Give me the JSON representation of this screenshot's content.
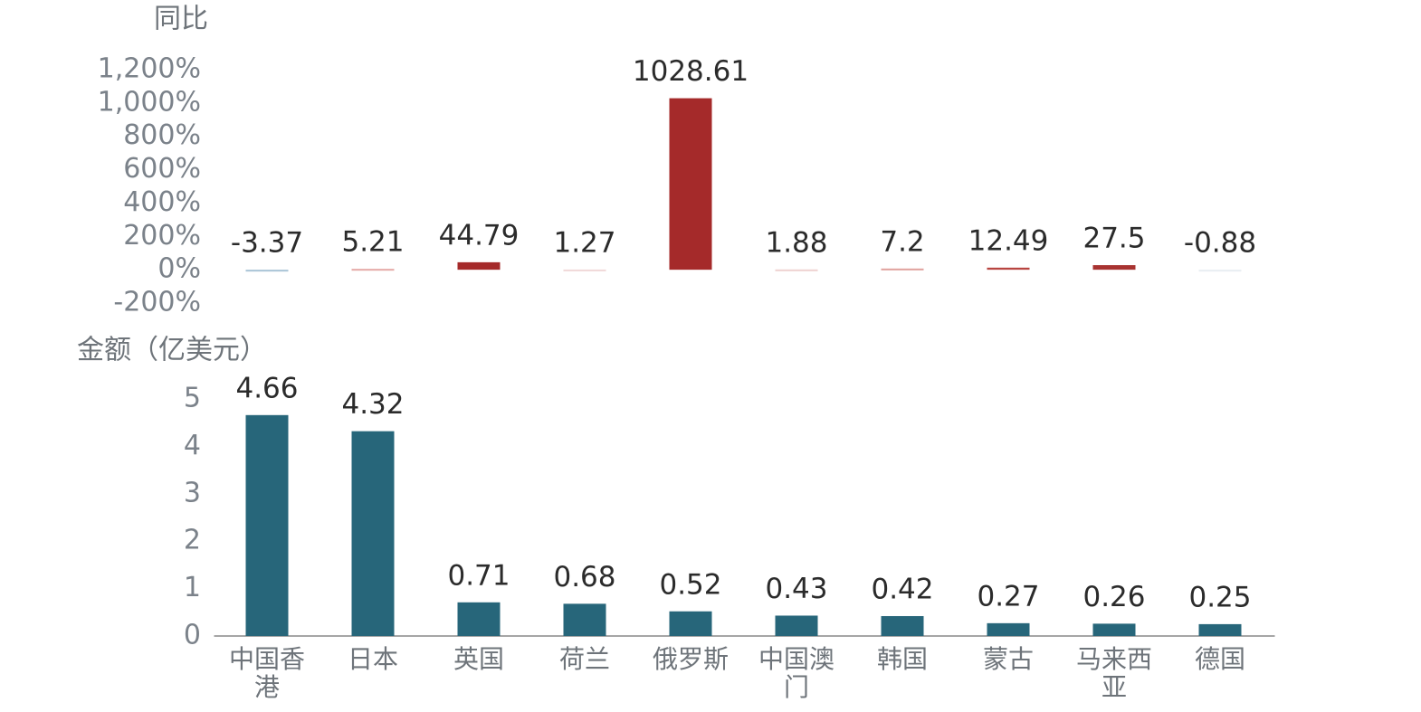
{
  "chart_data": [
    {
      "type": "bar",
      "y_title": "同比",
      "categories": [
        "中国香港",
        "日本",
        "英国",
        "荷兰",
        "俄罗斯",
        "中国澳门",
        "韩国",
        "蒙古",
        "马来西亚",
        "德国"
      ],
      "values": [
        -3.37,
        5.21,
        44.79,
        1.27,
        1028.61,
        1.88,
        7.2,
        12.49,
        27.5,
        -0.88
      ],
      "colors": [
        "#a9c3d6",
        "#e5a9a6",
        "#a52a2a",
        "#f1d9d8",
        "#a52a2a",
        "#efd2d0",
        "#e0a19d",
        "#b84541",
        "#a83331",
        "#e8eef2"
      ],
      "ylim": [
        -200,
        1200
      ],
      "yticks": [
        {
          "value": 1200,
          "label": "1,200%"
        },
        {
          "value": 1000,
          "label": "1,000%"
        },
        {
          "value": 800,
          "label": "800%"
        },
        {
          "value": 600,
          "label": "600%"
        },
        {
          "value": 400,
          "label": "400%"
        },
        {
          "value": 200,
          "label": "200%"
        },
        {
          "value": 0,
          "label": "0%"
        },
        {
          "value": -200,
          "label": "-200%"
        }
      ]
    },
    {
      "type": "bar",
      "y_title": "金额（亿美元）",
      "categories": [
        "中国香港",
        "日本",
        "英国",
        "荷兰",
        "俄罗斯",
        "中国澳门",
        "韩国",
        "蒙古",
        "马来西亚",
        "德国"
      ],
      "values": [
        4.66,
        4.32,
        0.71,
        0.68,
        0.52,
        0.43,
        0.42,
        0.27,
        0.26,
        0.25
      ],
      "color": "#27667a",
      "ylim": [
        0,
        5
      ],
      "yticks": [
        0,
        1,
        2,
        3,
        4,
        5
      ]
    }
  ]
}
